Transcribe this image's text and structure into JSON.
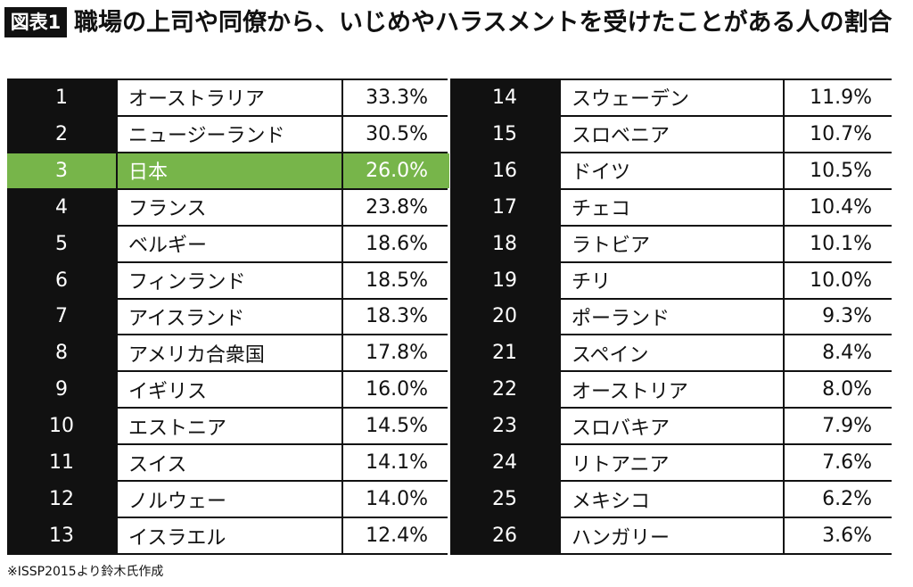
{
  "header": {
    "label": "図表1",
    "title": "職場の上司や同僚から、いじめやハラスメントを受けたことがある人の割合"
  },
  "table": {
    "highlight_row": 2,
    "highlight_color": "#77b54a",
    "rows": [
      [
        "1",
        "オーストラリア",
        "33.3%"
      ],
      [
        "2",
        "ニュージーランド",
        "30.5%"
      ],
      [
        "3",
        "日本",
        "26.0%"
      ],
      [
        "4",
        "フランス",
        "23.8%"
      ],
      [
        "5",
        "ベルギー",
        "18.6%"
      ],
      [
        "6",
        "フィンランド",
        "18.5%"
      ],
      [
        "7",
        "アイスランド",
        "18.3%"
      ],
      [
        "8",
        "アメリカ合衆国",
        "17.8%"
      ],
      [
        "9",
        "イギリス",
        "16.0%"
      ],
      [
        "10",
        "エストニア",
        "14.5%"
      ],
      [
        "11",
        "スイス",
        "14.1%"
      ],
      [
        "12",
        "ノルウェー",
        "14.0%"
      ],
      [
        "13",
        "イスラエル",
        "12.4%"
      ],
      [
        "14",
        "スウェーデン",
        "11.9%"
      ],
      [
        "15",
        "スロベニア",
        "10.7%"
      ],
      [
        "16",
        "ドイツ",
        "10.5%"
      ],
      [
        "17",
        "チェコ",
        "10.4%"
      ],
      [
        "18",
        "ラトビア",
        "10.1%"
      ],
      [
        "19",
        "チリ",
        "10.0%"
      ],
      [
        "20",
        "ポーランド",
        "9.3%"
      ],
      [
        "21",
        "スペイン",
        "8.4%"
      ],
      [
        "22",
        "オーストリア",
        "8.0%"
      ],
      [
        "23",
        "スロバキア",
        "7.9%"
      ],
      [
        "24",
        "リトアニア",
        "7.6%"
      ],
      [
        "25",
        "メキシコ",
        "6.2%"
      ],
      [
        "26",
        "ハンガリー",
        "3.6%"
      ]
    ]
  },
  "footnote": "※ISSP2015より鈴木氏作成"
}
